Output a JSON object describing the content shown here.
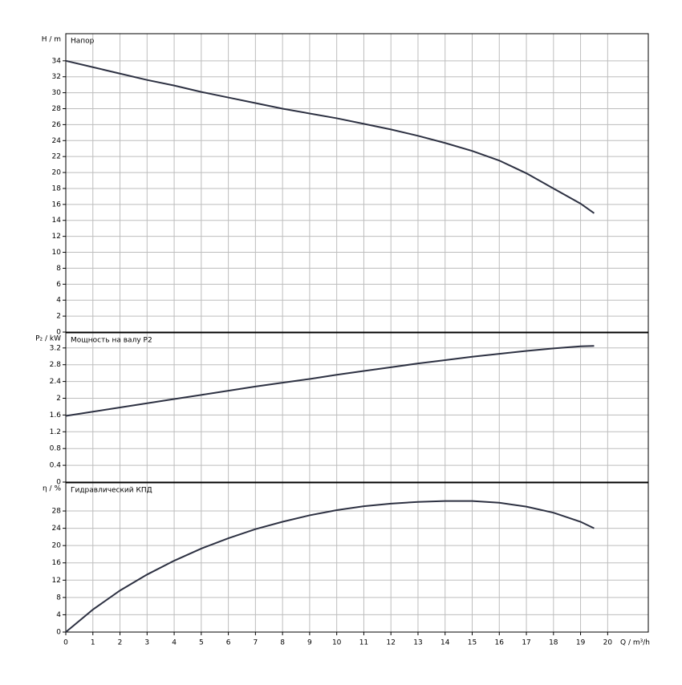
{
  "chart_data": [
    {
      "type": "line",
      "title": "Напор",
      "ylabel": "H / m",
      "x": [
        0,
        1,
        2,
        3,
        4,
        5,
        6,
        7,
        8,
        9,
        10,
        11,
        12,
        13,
        14,
        15,
        16,
        17,
        18,
        19,
        19.5
      ],
      "series": [
        {
          "color": "#2d3142",
          "values": [
            34,
            33.2,
            32.4,
            31.6,
            30.9,
            30.1,
            29.4,
            28.7,
            28.0,
            27.4,
            26.8,
            26.1,
            25.4,
            24.6,
            23.7,
            22.7,
            21.5,
            19.9,
            18.0,
            16.1,
            14.9
          ]
        }
      ],
      "xlim": [
        0,
        21.5
      ],
      "xticks": [
        0,
        1,
        2,
        3,
        4,
        5,
        6,
        7,
        8,
        9,
        10,
        11,
        12,
        13,
        14,
        15,
        16,
        17,
        18,
        19,
        20
      ],
      "ylim": [
        0,
        37.4
      ],
      "yticks": [
        0,
        2,
        4,
        6,
        8,
        10,
        12,
        14,
        16,
        18,
        20,
        22,
        24,
        26,
        28,
        30,
        32,
        34
      ],
      "grid": true
    },
    {
      "type": "line",
      "title": "Мощность на валу P2",
      "ylabel": "P₂ / kW",
      "x": [
        0,
        1,
        2,
        3,
        4,
        5,
        6,
        7,
        8,
        9,
        10,
        11,
        12,
        13,
        14,
        15,
        16,
        17,
        18,
        19,
        19.5
      ],
      "series": [
        {
          "color": "#2d3142",
          "values": [
            1.58,
            1.68,
            1.78,
            1.88,
            1.98,
            2.08,
            2.18,
            2.28,
            2.37,
            2.46,
            2.56,
            2.65,
            2.74,
            2.83,
            2.91,
            2.99,
            3.06,
            3.13,
            3.19,
            3.24,
            3.25
          ]
        }
      ],
      "xlim": [
        0,
        21.5
      ],
      "xticks": [
        0,
        1,
        2,
        3,
        4,
        5,
        6,
        7,
        8,
        9,
        10,
        11,
        12,
        13,
        14,
        15,
        16,
        17,
        18,
        19,
        20
      ],
      "ylim": [
        0,
        3.56
      ],
      "yticks": [
        0,
        0.4,
        0.8,
        1.2,
        1.6,
        2,
        2.4,
        2.8,
        3.2
      ],
      "grid": true
    },
    {
      "type": "line",
      "title": "Гидравлический КПД",
      "ylabel": "η / %",
      "xlabel": "Q / m³/h",
      "x": [
        0,
        1,
        2,
        3,
        4,
        5,
        6,
        7,
        8,
        9,
        10,
        11,
        12,
        13,
        14,
        15,
        16,
        17,
        18,
        19,
        19.5
      ],
      "series": [
        {
          "color": "#2d3142",
          "values": [
            0,
            5.2,
            9.6,
            13.3,
            16.5,
            19.3,
            21.7,
            23.8,
            25.5,
            27.0,
            28.2,
            29.1,
            29.7,
            30.1,
            30.3,
            30.3,
            29.9,
            29.0,
            27.6,
            25.5,
            24.0
          ]
        }
      ],
      "xlim": [
        0,
        21.5
      ],
      "xticks": [
        0,
        1,
        2,
        3,
        4,
        5,
        6,
        7,
        8,
        9,
        10,
        11,
        12,
        13,
        14,
        15,
        16,
        17,
        18,
        19,
        20
      ],
      "ylim": [
        0,
        34.5
      ],
      "yticks": [
        0,
        4,
        8,
        12,
        16,
        20,
        24,
        28
      ],
      "grid": true
    }
  ]
}
